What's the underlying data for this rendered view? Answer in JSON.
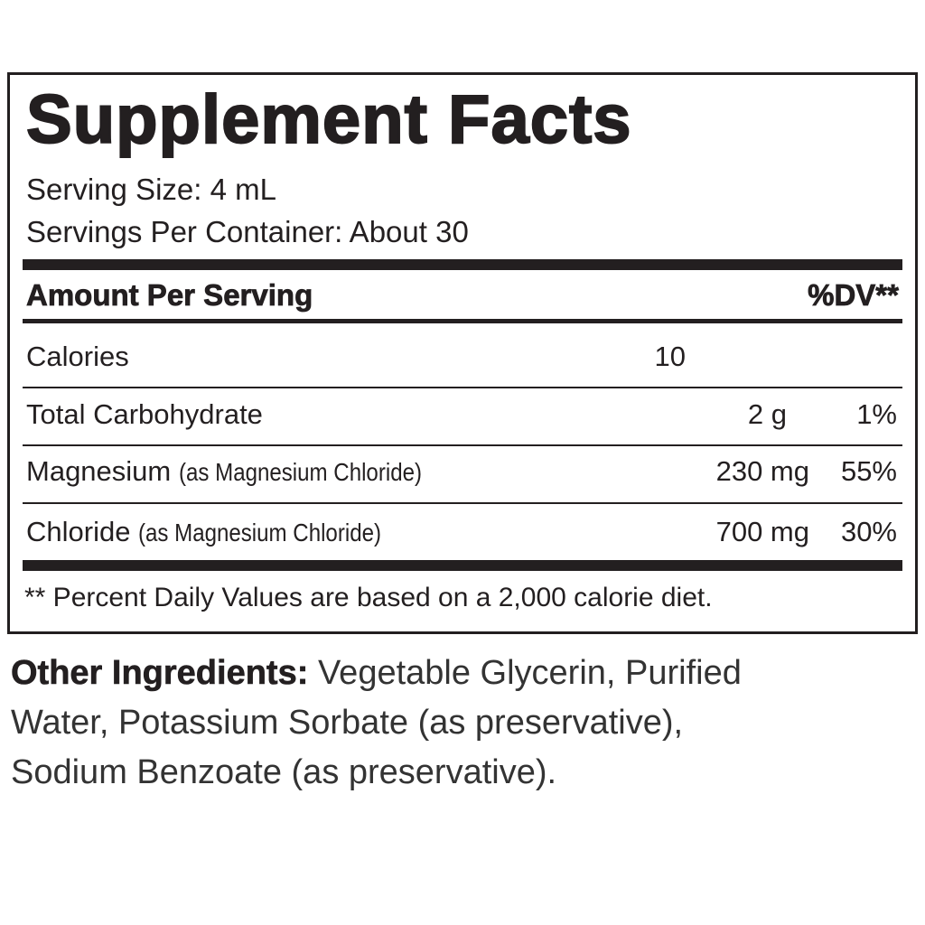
{
  "title": "Supplement Facts",
  "serving_size": "Serving Size: 4 mL",
  "servings_per_container": "Servings Per Container: About 30",
  "table": {
    "header": {
      "amount": "Amount Per Serving",
      "dv": "%DV**"
    },
    "rows": [
      {
        "name": "Calories",
        "amount": "10"
      },
      {
        "name": "Total Carbohydrate",
        "amount": "2 g",
        "dv": "1%"
      },
      {
        "name": "Magnesium",
        "detail": "(as Magnesium Chloride)",
        "amount": "230 mg",
        "dv": "55%"
      },
      {
        "name": "Chloride",
        "detail": "(as Magnesium Chloride)",
        "amount": "700 mg",
        "dv": "30%"
      }
    ]
  },
  "footnote": "** Percent Daily Values are based on a 2,000 calorie diet.",
  "other_ingredients": {
    "label": "Other Ingredients:",
    "text": "Vegetable Glycerin, Purified Water, Potassium Sorbate (as preservative), Sodium Benzoate (as preservative)."
  }
}
